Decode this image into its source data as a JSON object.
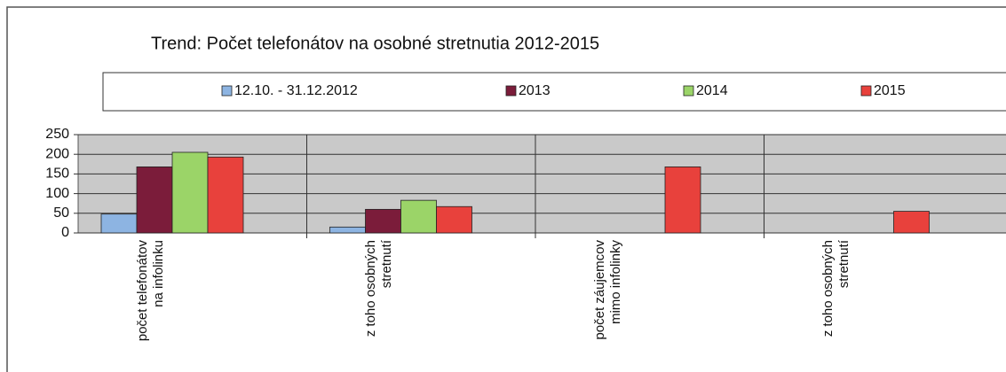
{
  "chart_data": {
    "type": "bar",
    "title": "Trend: Počet telefonátov na osobné stretnutia 2012-2015",
    "categories": [
      "počet telefonátov na infolinku",
      "z toho osobných stretnutí",
      "počet záujemcov mimo infolinky",
      "z toho osobných stretnutí"
    ],
    "series": [
      {
        "name": "12.10. - 31.12.2012",
        "color": "#8db4e2",
        "values": [
          48,
          15,
          0,
          0
        ]
      },
      {
        "name": "2013",
        "color": "#7b1c3a",
        "values": [
          168,
          60,
          0,
          0
        ]
      },
      {
        "name": "2014",
        "color": "#9bd468",
        "values": [
          205,
          83,
          0,
          0
        ]
      },
      {
        "name": "2015",
        "color": "#e8413c",
        "values": [
          193,
          67,
          168,
          55
        ]
      }
    ],
    "ylim": [
      0,
      250
    ],
    "yticks": [
      0,
      50,
      100,
      150,
      200,
      250
    ],
    "grid": true,
    "legend": "top"
  }
}
